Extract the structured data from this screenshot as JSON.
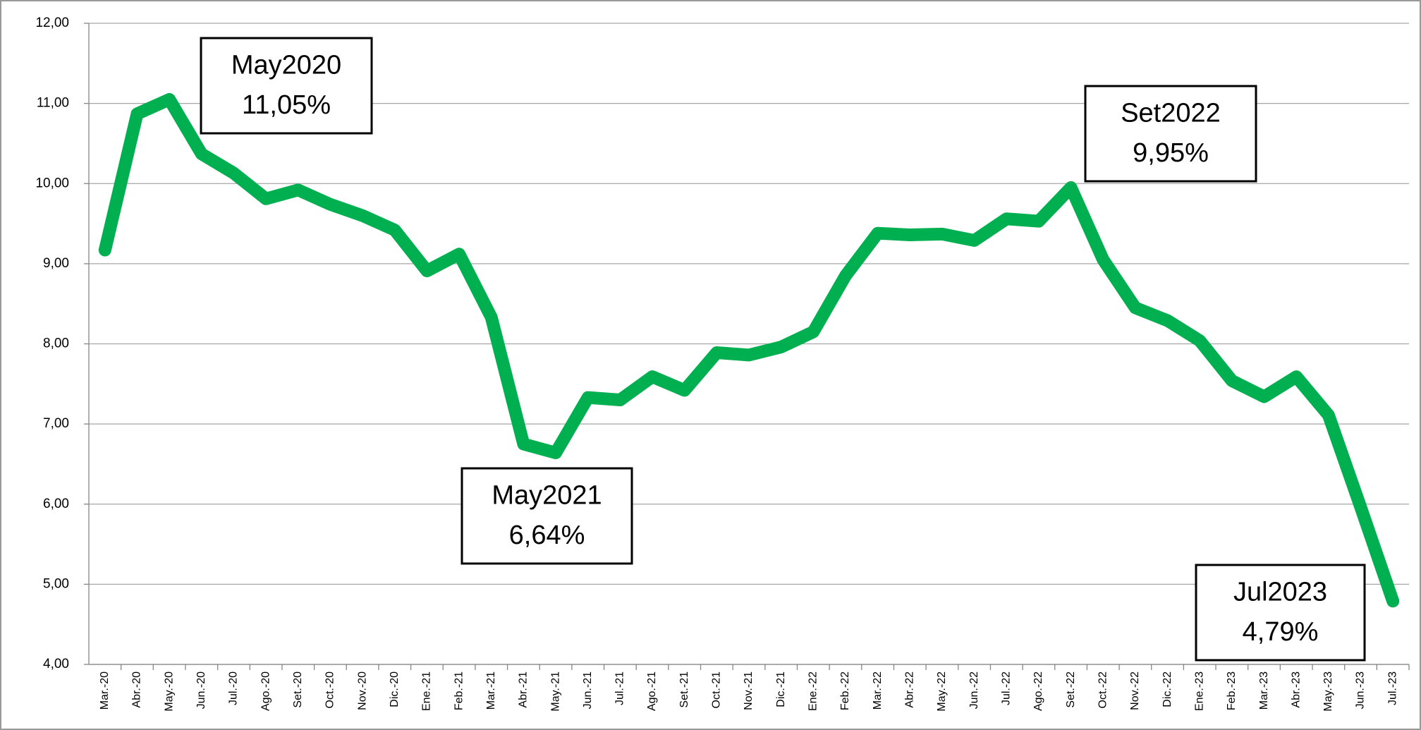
{
  "chart_data": {
    "type": "line",
    "categories": [
      "Mar.-20",
      "Abr.-20",
      "May.-20",
      "Jun.-20",
      "Jul.-20",
      "Ago.-20",
      "Set.-20",
      "Oct.-20",
      "Nov.-20",
      "Dic.-20",
      "Ene.-21",
      "Feb.-21",
      "Mar.-21",
      "Abr.-21",
      "May.-21",
      "Jun.-21",
      "Jul.-21",
      "Ago.-21",
      "Set.-21",
      "Oct.-21",
      "Nov.-21",
      "Dic.-21",
      "Ene.-22",
      "Feb.-22",
      "Mar.-22",
      "Abr.-22",
      "May.-22",
      "Jun.-22",
      "Jul.-22",
      "Ago.-22",
      "Set.-22",
      "Oct.-22",
      "Nov.-22",
      "Dic.-22",
      "Ene.-23",
      "Feb.-23",
      "Mar.-23",
      "Abr.-23",
      "May.-23",
      "Jun.-23",
      "Jul.-23"
    ],
    "series": [
      {
        "color": "#00b050",
        "values": [
          9.17,
          10.87,
          11.05,
          10.37,
          10.13,
          9.81,
          9.92,
          9.74,
          9.6,
          9.42,
          8.91,
          9.12,
          8.33,
          6.75,
          6.64,
          7.33,
          7.3,
          7.59,
          7.42,
          7.89,
          7.86,
          7.96,
          8.15,
          8.85,
          9.38,
          9.36,
          9.37,
          9.29,
          9.56,
          9.53,
          9.95,
          9.05,
          8.45,
          8.29,
          8.04,
          7.54,
          7.34,
          7.59,
          7.11,
          5.96,
          4.79
        ]
      }
    ],
    "ylim": [
      4,
      12
    ],
    "yticks": [
      {
        "value": 4,
        "label": "4,00"
      },
      {
        "value": 5,
        "label": "5,00"
      },
      {
        "value": 6,
        "label": "6,00"
      },
      {
        "value": 7,
        "label": "7,00"
      },
      {
        "value": 8,
        "label": "8,00"
      },
      {
        "value": 9,
        "label": "9,00"
      },
      {
        "value": 10,
        "label": "10,00"
      },
      {
        "value": 11,
        "label": "11,00"
      },
      {
        "value": 12,
        "label": "12,00"
      }
    ],
    "grid": true,
    "annotations": [
      {
        "title": "May2020",
        "text": "11,05%"
      },
      {
        "title": "May2021",
        "text": "6,64%"
      },
      {
        "title": "Set2022",
        "text": "9,95%"
      },
      {
        "title": "Jul2023",
        "text": "4,79%"
      }
    ]
  }
}
